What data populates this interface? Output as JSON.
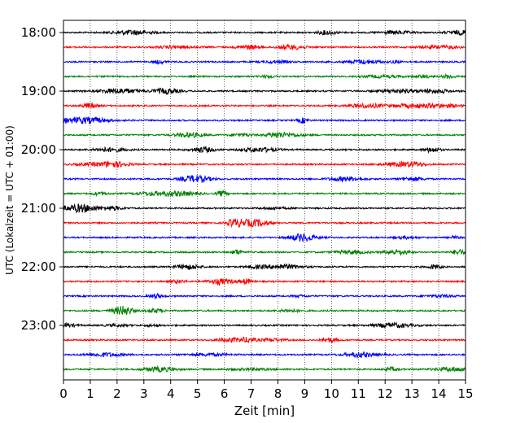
{
  "chart_data": {
    "type": "line",
    "title": "",
    "xlabel": "Zeit  [min]",
    "ylabel": "UTC (Lokalzeit = UTC + 01:00)",
    "xlim": [
      0,
      15
    ],
    "x_ticks": [
      0,
      1,
      2,
      3,
      4,
      5,
      6,
      7,
      8,
      9,
      10,
      11,
      12,
      13,
      14,
      15
    ],
    "x_tick_labels": [
      "0",
      "1",
      "2",
      "3",
      "4",
      "5",
      "6",
      "7",
      "8",
      "9",
      "10",
      "11",
      "12",
      "13",
      "14",
      "15"
    ],
    "y_tick_labels": [
      "18:00",
      "19:00",
      "20:00",
      "21:00",
      "22:00",
      "23:00"
    ],
    "y_tick_hours": [
      18,
      19,
      20,
      21,
      22,
      23
    ],
    "trace_start_times": [
      "18:00",
      "18:15",
      "18:30",
      "18:45",
      "19:00",
      "19:15",
      "19:30",
      "19:45",
      "20:00",
      "20:15",
      "20:30",
      "20:45",
      "21:00",
      "21:15",
      "21:30",
      "21:45",
      "22:00",
      "22:15",
      "22:30",
      "22:45",
      "23:00",
      "23:15",
      "23:30",
      "23:45"
    ],
    "trace_colors": [
      "#000000",
      "#ff0000",
      "#0000ff",
      "#008000"
    ],
    "vertical_grid": true,
    "grid_style": "dotted",
    "legend": false
  }
}
